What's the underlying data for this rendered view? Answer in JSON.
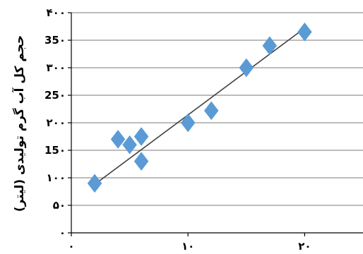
{
  "chart_data": {
    "type": "scatter",
    "title": "",
    "ylabel": "حجم کل آب گرم تولیدی (لیتر)",
    "xlabel": "",
    "xlim": [
      0,
      25
    ],
    "ylim": [
      0,
      400
    ],
    "x_ticks": [
      {
        "value": 0,
        "label": "۰"
      },
      {
        "value": 10,
        "label": "۱۰"
      },
      {
        "value": 20,
        "label": "۲۰"
      }
    ],
    "y_ticks": [
      {
        "value": 0,
        "label": "۰"
      },
      {
        "value": 50,
        "label": "۵۰"
      },
      {
        "value": 100,
        "label": "۱۰۰"
      },
      {
        "value": 150,
        "label": "15۰"
      },
      {
        "value": 200,
        "label": "۲۰۰"
      },
      {
        "value": 250,
        "label": "25۰"
      },
      {
        "value": 300,
        "label": "۳۰۰"
      },
      {
        "value": 350,
        "label": "35۰"
      },
      {
        "value": 400,
        "label": "۴۰۰"
      }
    ],
    "grid": {
      "horizontal": true,
      "vertical": false
    },
    "points": [
      {
        "x": 2,
        "y": 90
      },
      {
        "x": 4,
        "y": 170
      },
      {
        "x": 5,
        "y": 160
      },
      {
        "x": 6,
        "y": 175
      },
      {
        "x": 6,
        "y": 130
      },
      {
        "x": 10,
        "y": 200
      },
      {
        "x": 12,
        "y": 222
      },
      {
        "x": 15,
        "y": 300
      },
      {
        "x": 17,
        "y": 340
      },
      {
        "x": 20,
        "y": 365
      }
    ],
    "trendline": {
      "x": [
        2,
        20
      ],
      "y": [
        88,
        372
      ]
    },
    "colors": {
      "marker": "#5b9bd5",
      "trendline": "#404040",
      "grid": "#a6a6a6",
      "axis": "#000000"
    }
  }
}
